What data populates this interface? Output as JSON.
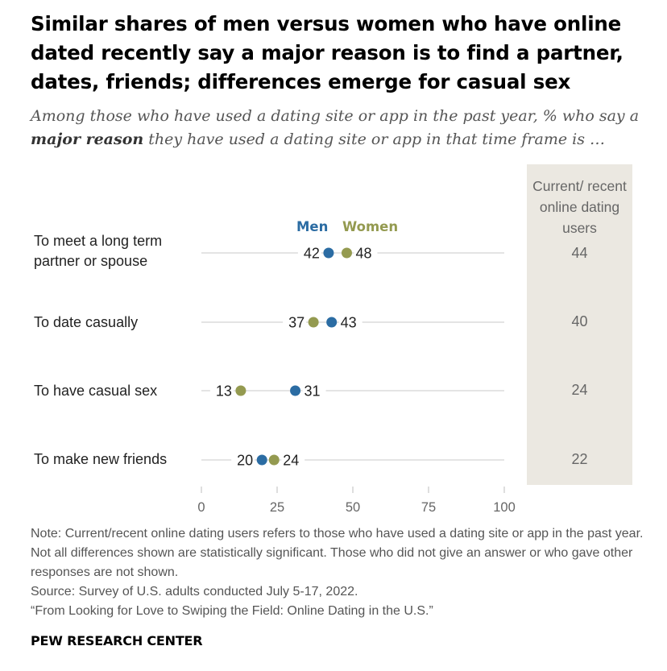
{
  "title": "Similar shares of men versus women who have online dated recently say a major reason is to find a partner, dates, friends; differences emerge for casual sex",
  "subtitle_pre": "Among those who have used a dating site or app in the past year, % who say a ",
  "subtitle_bold": "major reason",
  "subtitle_post": " they have used a dating site or app in that time frame is …",
  "legend": {
    "men": "Men",
    "women": "Women"
  },
  "total_header": "Current/ recent online dating users",
  "colors": {
    "men": "#2b6ca3",
    "women": "#949a50",
    "panel": "#ebe8e1"
  },
  "chart_data": {
    "type": "scatter",
    "categories": [
      "To meet a long term partner or spouse",
      "To date casually",
      "To have casual sex",
      "To make new friends"
    ],
    "series": [
      {
        "name": "Men",
        "values": [
          42,
          43,
          31,
          20
        ]
      },
      {
        "name": "Women",
        "values": [
          48,
          37,
          13,
          24
        ]
      }
    ],
    "totals": [
      44,
      40,
      24,
      22
    ],
    "xlim": [
      0,
      100
    ],
    "xticks": [
      0,
      25,
      50,
      75,
      100
    ]
  },
  "notes": {
    "note": "Note: Current/recent online dating users refers to those who have used a dating site or app in the past year. Not all differences shown are statistically significant. Those who did not give an answer or who gave other responses are not shown.",
    "source": "Source: Survey of U.S. adults conducted July 5-17, 2022.",
    "report": "“From Looking for Love to Swiping the Field: Online Dating in the U.S.”"
  },
  "brand": "PEW RESEARCH CENTER"
}
